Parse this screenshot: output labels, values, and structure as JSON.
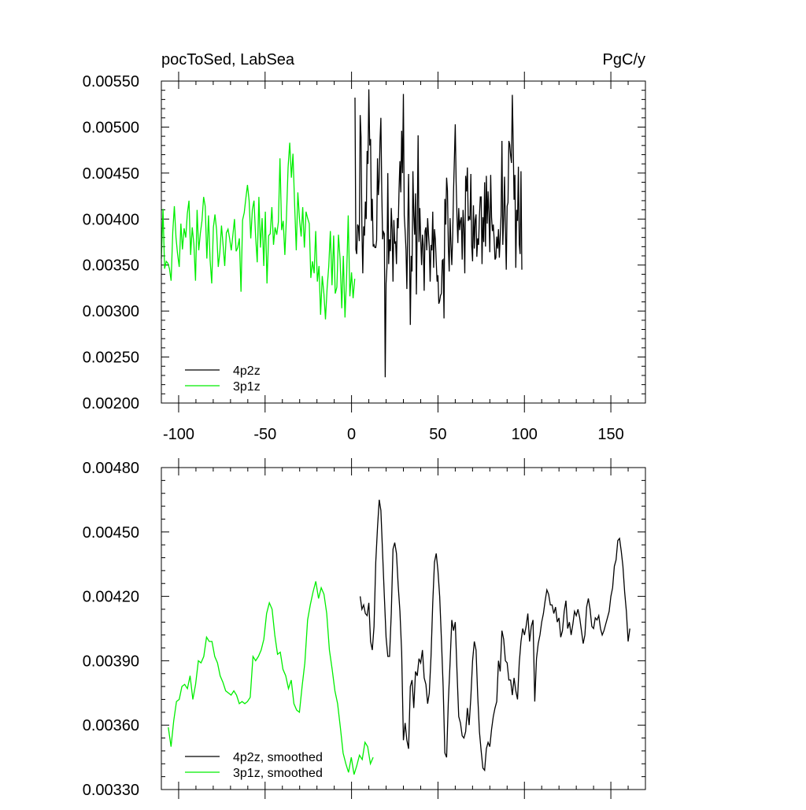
{
  "chart_data": [
    {
      "type": "line",
      "title": "pocToSed, LabSea",
      "units": "PgC/y",
      "xlim": [
        -110,
        170
      ],
      "ylim": [
        0.002,
        0.0055
      ],
      "x_ticks": [
        -100,
        -50,
        0,
        50,
        100,
        150
      ],
      "x_tick_labels": [
        "-100",
        "-50",
        "0",
        "50",
        "100",
        "150"
      ],
      "y_ticks": [
        0.002,
        0.0025,
        0.003,
        0.0035,
        0.004,
        0.0045,
        0.005,
        0.0055
      ],
      "y_tick_labels": [
        "0.00200",
        "0.00250",
        "0.00300",
        "0.00350",
        "0.00400",
        "0.00450",
        "0.00500",
        "0.00550"
      ],
      "legend_position": "bottom-left",
      "series": [
        {
          "name": "4p2z",
          "color": "#000000",
          "x_start": 2,
          "x_step": 1,
          "values": [
            0.00532,
            0.00367,
            0.00362,
            0.00394,
            0.00392,
            0.00376,
            0.00513,
            0.00489,
            0.0039,
            0.00341,
            0.00392,
            0.00382,
            0.00419,
            0.004,
            0.00474,
            0.0046,
            0.00541,
            0.0048,
            0.00487,
            0.00398,
            0.00422,
            0.0037,
            0.00372,
            0.00369,
            0.00369,
            0.00377,
            0.00466,
            0.00426,
            0.00443,
            0.00485,
            0.0051,
            0.00431,
            0.00378,
            0.00386,
            0.00384,
            0.00228,
            0.0033,
            0.00348,
            0.0045,
            0.00351,
            0.00378,
            0.00365,
            0.00412,
            0.00389,
            0.00332,
            0.00399,
            0.00374,
            0.00375,
            0.00351,
            0.00401,
            0.0039,
            0.00433,
            0.00463,
            0.00429,
            0.00496,
            0.0045,
            0.00536,
            0.00404,
            0.00387,
            0.00367,
            0.00324,
            0.00389,
            0.00449,
            0.0037,
            0.00285,
            0.0036,
            0.00343,
            0.00452,
            0.00404,
            0.00383,
            0.00428,
            0.00318,
            0.00395,
            0.00491,
            0.00375,
            0.00412,
            0.00378,
            0.0035,
            0.00383,
            0.00371,
            0.00322,
            0.00387,
            0.00391,
            0.00366,
            0.00401,
            0.00385,
            0.00369,
            0.00332,
            0.00372,
            0.00366,
            0.00408,
            0.00347,
            0.00389,
            0.00378,
            0.00354,
            0.00332,
            0.00339,
            0.00308,
            0.00311,
            0.00317,
            0.00319,
            0.00355,
            0.00356,
            0.00292,
            0.00422,
            0.00394,
            0.00445,
            0.00431,
            0.0037,
            0.00343,
            0.00401,
            0.00373,
            0.0035,
            0.00381,
            0.0043,
            0.00466,
            0.00503,
            0.00441,
            0.00402,
            0.00374,
            0.00412,
            0.00388,
            0.00398,
            0.00402,
            0.00356,
            0.0041,
            0.00391,
            0.00341,
            0.00447,
            0.0043,
            0.00456,
            0.00398,
            0.00403,
            0.00399,
            0.00449,
            0.00371,
            0.00354,
            0.00415,
            0.00368,
            0.00399,
            0.00405,
            0.00359,
            0.00379,
            0.00372,
            0.00403,
            0.00424,
            0.00424,
            0.00351,
            0.00402,
            0.00375,
            0.0044,
            0.0037,
            0.00447,
            0.00395,
            0.0043,
            0.00405,
            0.00364,
            0.00448,
            0.00402,
            0.00387,
            0.00394,
            0.00378,
            0.00356,
            0.00358,
            0.00381,
            0.00368,
            0.00389,
            0.00358,
            0.0038,
            0.00404,
            0.00485,
            0.00372,
            0.00401,
            0.00446,
            0.0039,
            0.00345,
            0.00414,
            0.00418,
            0.00485,
            0.00481,
            0.00469,
            0.00461,
            0.00535,
            0.00483,
            0.00421,
            0.00448,
            0.00347,
            0.0041,
            0.00398,
            0.00457,
            0.00373,
            0.00362,
            0.00452,
            0.00345
          ],
          "x_step_override": 0.5
        },
        {
          "name": "3p1z",
          "color": "#00ee00",
          "x_start": -110,
          "x_step": 1,
          "values": [
            0.00357,
            0.00411,
            0.00346,
            0.00354,
            0.00352,
            0.00346,
            0.00333,
            0.00386,
            0.00414,
            0.0038,
            0.00362,
            0.00348,
            0.00395,
            0.00367,
            0.0039,
            0.0038,
            0.00406,
            0.0042,
            0.00361,
            0.00391,
            0.00373,
            0.00333,
            0.0041,
            0.00366,
            0.00385,
            0.00398,
            0.00424,
            0.00414,
            0.00357,
            0.00404,
            0.00356,
            0.0033,
            0.00391,
            0.00405,
            0.00388,
            0.00348,
            0.00364,
            0.00393,
            0.00371,
            0.00349,
            0.00385,
            0.00389,
            0.00379,
            0.00366,
            0.00382,
            0.004,
            0.00365,
            0.00369,
            0.00379,
            0.00321,
            0.00399,
            0.00407,
            0.00423,
            0.00437,
            0.0042,
            0.00379,
            0.0041,
            0.0042,
            0.00382,
            0.00353,
            0.00424,
            0.00369,
            0.00401,
            0.00349,
            0.00408,
            0.0033,
            0.00382,
            0.00384,
            0.00413,
            0.00372,
            0.00391,
            0.00383,
            0.00397,
            0.00466,
            0.00388,
            0.00398,
            0.00361,
            0.00404,
            0.00456,
            0.00483,
            0.00445,
            0.00471,
            0.00416,
            0.00366,
            0.00429,
            0.004,
            0.00381,
            0.00413,
            0.00369,
            0.00408,
            0.00401,
            0.00395,
            0.00336,
            0.00354,
            0.00341,
            0.00387,
            0.00332,
            0.00349,
            0.00296,
            0.00338,
            0.00319,
            0.00291,
            0.00325,
            0.00349,
            0.00387,
            0.00328,
            0.00382,
            0.00319,
            0.00326,
            0.00383,
            0.00356,
            0.00303,
            0.0036,
            0.00293,
            0.00339,
            0.00404,
            0.00316,
            0.00342,
            0.00314,
            0.00335
          ],
          "x_step_override": 0.94
        }
      ],
      "legend": [
        {
          "label": "4p2z",
          "color": "#000000"
        },
        {
          "label": "3p1z",
          "color": "#00ee00"
        }
      ]
    },
    {
      "type": "line",
      "xlim": [
        -110,
        170
      ],
      "ylim": [
        0.0033,
        0.0048
      ],
      "y_ticks": [
        0.0033,
        0.0036,
        0.0039,
        0.0042,
        0.0045,
        0.0048
      ],
      "y_tick_labels": [
        "0.00330",
        "0.00360",
        "0.00390",
        "0.00420",
        "0.00450",
        "0.00480"
      ],
      "legend_position": "bottom-left",
      "series": [
        {
          "name": "4p2z, smoothed",
          "color": "#000000",
          "x_start": 5,
          "x_step": 1,
          "values": [
            0.0042,
            0.00414,
            0.00416,
            0.00412,
            0.00411,
            0.00417,
            0.00399,
            0.00395,
            0.00406,
            0.00436,
            0.00452,
            0.00465,
            0.0046,
            0.0044,
            0.0042,
            0.00401,
            0.00392,
            0.00392,
            0.00412,
            0.00442,
            0.00445,
            0.0044,
            0.00425,
            0.00413,
            0.00394,
            0.00353,
            0.00361,
            0.00353,
            0.00349,
            0.00378,
            0.00381,
            0.00368,
            0.00385,
            0.00383,
            0.00391,
            0.00389,
            0.00395,
            0.00382,
            0.00379,
            0.0037,
            0.00375,
            0.00392,
            0.00417,
            0.00436,
            0.0044,
            0.00432,
            0.0042,
            0.004,
            0.00378,
            0.00347,
            0.00345,
            0.00371,
            0.00389,
            0.00409,
            0.00404,
            0.00408,
            0.00385,
            0.00364,
            0.00361,
            0.00355,
            0.00354,
            0.00357,
            0.00368,
            0.0036,
            0.00373,
            0.0039,
            0.00399,
            0.00395,
            0.00374,
            0.00357,
            0.00348,
            0.0034,
            0.00339,
            0.00349,
            0.00352,
            0.0035,
            0.00358,
            0.00364,
            0.00368,
            0.00371,
            0.0039,
            0.00385,
            0.00404,
            0.004,
            0.0039,
            0.00389,
            0.00381,
            0.00381,
            0.00374,
            0.00382,
            0.00376,
            0.00372,
            0.00389,
            0.00399,
            0.00405,
            0.00402,
            0.00406,
            0.00412,
            0.00399,
            0.00406,
            0.00409,
            0.00371,
            0.00391,
            0.00398,
            0.00402,
            0.00408,
            0.00412,
            0.00418,
            0.00423,
            0.00421,
            0.00416,
            0.00416,
            0.00412,
            0.00415,
            0.00408,
            0.0041,
            0.00401,
            0.00404,
            0.00413,
            0.00418,
            0.00405,
            0.00408,
            0.00402,
            0.00407,
            0.00413,
            0.00411,
            0.00414,
            0.0041,
            0.00404,
            0.00398,
            0.00402,
            0.00415,
            0.00419,
            0.00414,
            0.00406,
            0.00405,
            0.0041,
            0.00409,
            0.00411,
            0.00405,
            0.00402,
            0.00404,
            0.00407,
            0.0041,
            0.00413,
            0.0042,
            0.00424,
            0.00434,
            0.00437,
            0.00446,
            0.00447,
            0.00441,
            0.00434,
            0.00422,
            0.00413,
            0.00399,
            0.00405
          ],
          "x_step_override": 1.0
        },
        {
          "name": "3p1z, smoothed",
          "color": "#00ee00",
          "x_start": -106,
          "x_step": 1,
          "values": [
            0.00359,
            0.0035,
            0.00362,
            0.00371,
            0.00372,
            0.00378,
            0.00379,
            0.00377,
            0.00383,
            0.00372,
            0.00379,
            0.0039,
            0.00389,
            0.00392,
            0.00401,
            0.00399,
            0.00399,
            0.00392,
            0.00389,
            0.00383,
            0.0038,
            0.00376,
            0.00375,
            0.00374,
            0.00376,
            0.00374,
            0.0037,
            0.00371,
            0.0037,
            0.00371,
            0.00373,
            0.00392,
            0.0039,
            0.00392,
            0.00395,
            0.004,
            0.00412,
            0.00417,
            0.00414,
            0.00402,
            0.00393,
            0.00394,
            0.00386,
            0.00383,
            0.00377,
            0.00381,
            0.0037,
            0.00367,
            0.00366,
            0.00378,
            0.00389,
            0.00409,
            0.00416,
            0.00422,
            0.00427,
            0.00419,
            0.00424,
            0.00421,
            0.00412,
            0.00395,
            0.00386,
            0.00376,
            0.0037,
            0.00359,
            0.00347,
            0.00342,
            0.00338,
            0.00345,
            0.00337,
            0.00341,
            0.00346,
            0.00344,
            0.00352,
            0.0035,
            0.00342,
            0.00345
          ],
          "x_step_override": 1.58
        }
      ],
      "legend": [
        {
          "label": "4p2z, smoothed",
          "color": "#000000"
        },
        {
          "label": "3p1z, smoothed",
          "color": "#00ee00"
        }
      ]
    }
  ]
}
